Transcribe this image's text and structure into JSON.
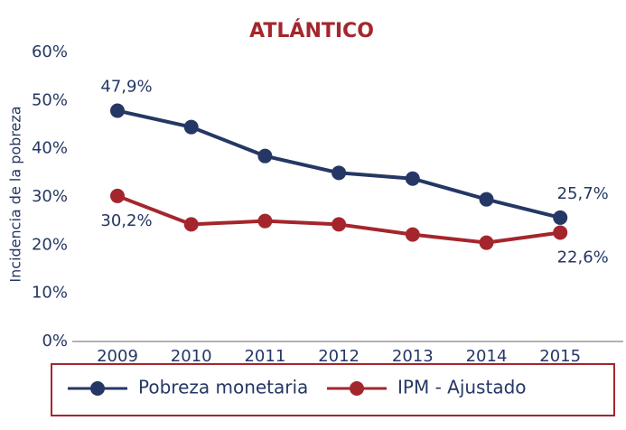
{
  "chart_data": {
    "type": "line",
    "title": "ATLÁNTICO",
    "y_label": "Incidencia de la pobreza",
    "categories": [
      "2009",
      "2010",
      "2011",
      "2012",
      "2013",
      "2014",
      "2015"
    ],
    "series": [
      {
        "name": "Pobreza monetaria",
        "color": "#253764",
        "values": [
          47.9,
          44.5,
          38.5,
          35,
          33.8,
          29.5,
          25.7
        ],
        "value_labels": [
          "47,9%",
          null,
          null,
          null,
          null,
          null,
          "25,7%"
        ]
      },
      {
        "name": "IPM - Ajustado",
        "color": "#a4262c",
        "values": [
          30.2,
          24.3,
          25,
          24.3,
          22.2,
          20.5,
          22.6
        ],
        "value_labels": [
          "30,2%",
          null,
          null,
          null,
          null,
          null,
          "22,6%"
        ]
      }
    ],
    "ylim": [
      0,
      60
    ],
    "yticks": [
      {
        "value": 0,
        "label": "0%"
      },
      {
        "value": 10,
        "label": "10%"
      },
      {
        "value": 20,
        "label": "20%"
      },
      {
        "value": 30,
        "label": "30%"
      },
      {
        "value": 40,
        "label": "40%"
      },
      {
        "value": 50,
        "label": "50%"
      },
      {
        "value": 60,
        "label": "60%"
      }
    ],
    "legend": "bottom"
  }
}
